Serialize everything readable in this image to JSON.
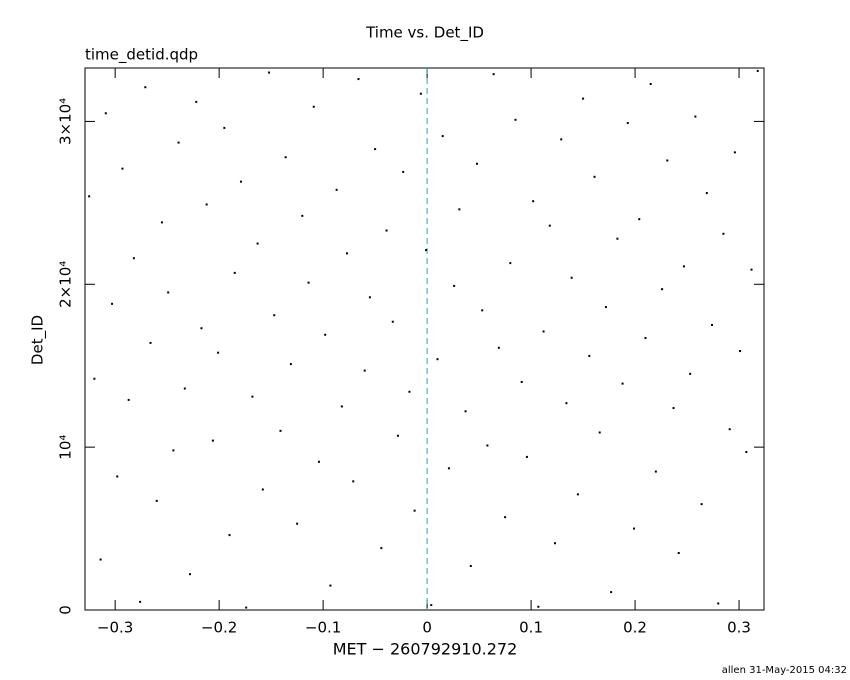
{
  "chart_data": {
    "type": "scatter",
    "title": "Time vs. Det_ID",
    "subtitle": "time_detid.qdp",
    "x_label": "MET − 260792910.272",
    "y_label": "Det_ID",
    "footer": "allen 31-May-2015 04:32",
    "color": "#000000",
    "xlim": [
      -0.329,
      0.324
    ],
    "ylim": [
      0,
      33280
    ],
    "xticks": [
      {
        "value": -0.3,
        "label": "−0.3"
      },
      {
        "value": -0.2,
        "label": "−0.2"
      },
      {
        "value": -0.1,
        "label": "−0.1"
      },
      0,
      0.1,
      0.2,
      0.3
    ],
    "yticks": [
      0,
      {
        "value": 10000,
        "label": "10⁴"
      },
      {
        "value": 20000,
        "label": "2×10⁴"
      },
      {
        "value": 30000,
        "label": "3×10⁴"
      }
    ],
    "reference_line": {
      "x": 0,
      "color": "#3a9fb0"
    },
    "x": [
      -0.325,
      -0.32,
      -0.314,
      -0.309,
      -0.303,
      -0.298,
      -0.293,
      -0.287,
      -0.282,
      -0.276,
      -0.271,
      -0.266,
      -0.26,
      -0.255,
      -0.249,
      -0.244,
      -0.239,
      -0.233,
      -0.228,
      -0.222,
      -0.217,
      -0.212,
      -0.206,
      -0.201,
      -0.195,
      -0.19,
      -0.185,
      -0.179,
      -0.174,
      -0.168,
      -0.163,
      -0.158,
      -0.152,
      -0.147,
      -0.141,
      -0.136,
      -0.131,
      -0.125,
      -0.12,
      -0.114,
      -0.109,
      -0.104,
      -0.098,
      -0.093,
      -0.087,
      -0.082,
      -0.077,
      -0.071,
      -0.066,
      -0.06,
      -0.055,
      -0.05,
      -0.044,
      -0.039,
      -0.033,
      -0.028,
      -0.023,
      -0.017,
      -0.012,
      -0.006,
      -0.001,
      0.004,
      0.01,
      0.015,
      0.021,
      0.026,
      0.031,
      0.037,
      0.042,
      0.048,
      0.053,
      0.058,
      0.064,
      0.069,
      0.075,
      0.08,
      0.085,
      0.091,
      0.096,
      0.102,
      0.107,
      0.112,
      0.118,
      0.123,
      0.129,
      0.134,
      0.139,
      0.145,
      0.15,
      0.156,
      0.161,
      0.166,
      0.172,
      0.177,
      0.183,
      0.188,
      0.193,
      0.199,
      0.204,
      0.21,
      0.215,
      0.22,
      0.226,
      0.231,
      0.237,
      0.242,
      0.247,
      0.253,
      0.258,
      0.264,
      0.269,
      0.274,
      0.28,
      0.285,
      0.291,
      0.296,
      0.301,
      0.307,
      0.312,
      0.318
    ],
    "values": [
      25400,
      14200,
      3100,
      30500,
      18800,
      8200,
      27100,
      12900,
      21600,
      500,
      32100,
      16400,
      6700,
      23800,
      19500,
      9800,
      28700,
      13600,
      2200,
      31200,
      17300,
      24900,
      10400,
      15800,
      29600,
      4600,
      20700,
      26300,
      150,
      13100,
      22500,
      7400,
      33000,
      18100,
      11000,
      27800,
      15100,
      5300,
      24200,
      20100,
      30900,
      9100,
      16900,
      1500,
      25800,
      12500,
      21900,
      7900,
      32600,
      14700,
      19200,
      28300,
      3800,
      23300,
      17700,
      10700,
      26900,
      13400,
      6100,
      31700,
      22100,
      300,
      15400,
      29100,
      8700,
      19900,
      24600,
      12200,
      2700,
      27400,
      18400,
      10100,
      32900,
      16100,
      5700,
      21300,
      30100,
      14000,
      9400,
      25100,
      200,
      17100,
      23600,
      4100,
      28900,
      12700,
      20400,
      7100,
      31400,
      15600,
      26600,
      10900,
      18600,
      1100,
      22800,
      13900,
      29900,
      5000,
      24000,
      16700,
      32300,
      8500,
      19700,
      27600,
      12400,
      3500,
      21100,
      14500,
      30300,
      6500,
      25600,
      17500,
      400,
      23100,
      11100,
      28100,
      15900,
      9700,
      20900,
      33100
    ]
  }
}
